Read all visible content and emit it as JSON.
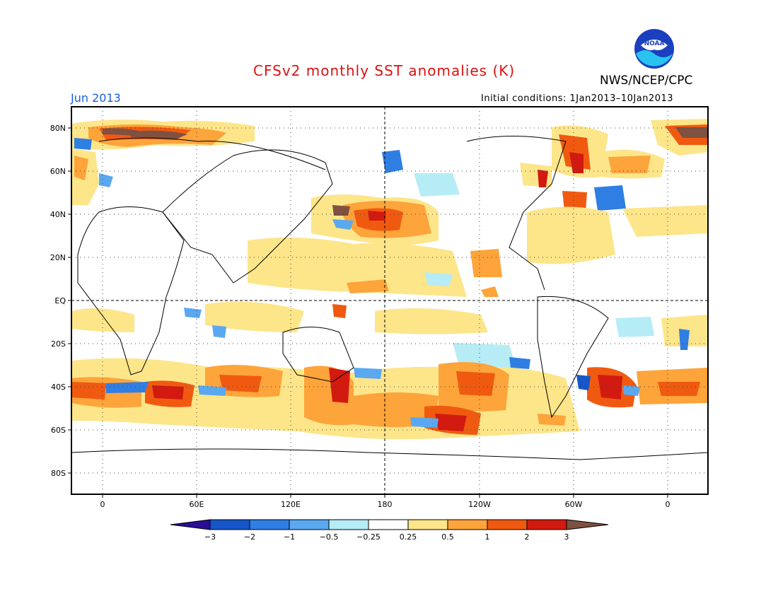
{
  "title": "CFSv2 monthly SST anomalies (K)",
  "agency": "NWS/NCEP/CPC",
  "logo_text": "NOAA",
  "month": "Jun 2013",
  "initial_conditions": "Initial conditions: 1Jan2013–10Jan2013",
  "map": {
    "projection": "cylindrical equidistant",
    "center_longitude": "180",
    "lat_labels": [
      "80N",
      "60N",
      "40N",
      "20N",
      "EQ",
      "20S",
      "40S",
      "60S",
      "80S"
    ],
    "lon_labels": [
      "0",
      "60E",
      "120E",
      "180",
      "120W",
      "60W",
      "0"
    ],
    "grid": "dotted"
  },
  "colorbar": {
    "labels": [
      "−3",
      "−2",
      "−1",
      "−0.5",
      "−0.25",
      "0.25",
      "0.5",
      "1",
      "2",
      "3"
    ],
    "colors": [
      "#2c0d9a",
      "#1656c8",
      "#2f7ee3",
      "#5aa8f0",
      "#b6ecf6",
      "#ffffff",
      "#fde58a",
      "#fda43a",
      "#f05a10",
      "#d21a10",
      "#a40a08",
      "#7e5141"
    ]
  }
}
